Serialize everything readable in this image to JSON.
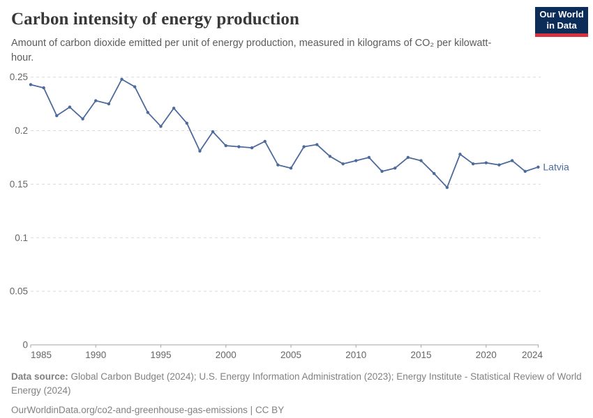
{
  "header": {
    "title": "Carbon intensity of energy production",
    "subtitle": "Amount of carbon dioxide emitted per unit of energy production, measured in kilograms of CO₂ per kilowatt-hour.",
    "logo": {
      "line1": "Our World",
      "line2": "in Data"
    }
  },
  "chart_data": {
    "type": "line",
    "title": "Carbon intensity of energy production",
    "xlabel": "",
    "ylabel": "kilograms of CO₂ per kilowatt-hour",
    "xlim": [
      1985,
      2024
    ],
    "ylim": [
      0,
      0.25
    ],
    "grid": "horizontal-dashed",
    "legend_position": "end-of-line-label",
    "y_ticks": [
      0,
      0.05,
      0.1,
      0.15,
      0.2,
      0.25
    ],
    "y_tick_labels": [
      "0",
      "0.05",
      "0.1",
      "0.15",
      "0.2",
      "0.25"
    ],
    "x_ticks": [
      1985,
      1990,
      1995,
      2000,
      2005,
      2010,
      2015,
      2020,
      2024
    ],
    "x_tick_labels": [
      "1985",
      "1990",
      "1995",
      "2000",
      "2005",
      "2010",
      "2015",
      "2020",
      "2024"
    ],
    "series": [
      {
        "name": "Latvia",
        "color": "#4c6a9c",
        "x": [
          1985,
          1986,
          1987,
          1988,
          1989,
          1990,
          1991,
          1992,
          1993,
          1994,
          1995,
          1996,
          1997,
          1998,
          1999,
          2000,
          2001,
          2002,
          2003,
          2004,
          2005,
          2006,
          2007,
          2008,
          2009,
          2010,
          2011,
          2012,
          2013,
          2014,
          2015,
          2016,
          2017,
          2018,
          2019,
          2020,
          2021,
          2022,
          2023,
          2024
        ],
        "values": [
          0.243,
          0.24,
          0.214,
          0.222,
          0.211,
          0.228,
          0.225,
          0.248,
          0.241,
          0.217,
          0.204,
          0.221,
          0.207,
          0.181,
          0.199,
          0.186,
          0.185,
          0.184,
          0.19,
          0.168,
          0.165,
          0.185,
          0.187,
          0.176,
          0.169,
          0.172,
          0.175,
          0.162,
          0.165,
          0.175,
          0.172,
          0.16,
          0.147,
          0.178,
          0.169,
          0.17,
          0.168,
          0.172,
          0.162,
          0.166
        ]
      }
    ]
  },
  "footer": {
    "source_label": "Data source:",
    "source_text": " Global Carbon Budget (2024); U.S. Energy Information Administration (2023); Energy Institute - Statistical Review of World Energy (2024)",
    "link_text": "OurWorldinData.org/co2-and-greenhouse-gas-emissions",
    "separator": " | ",
    "license": "CC BY"
  },
  "colors": {
    "line": "#4c6a9c",
    "title": "#383838",
    "subtitle": "#5b5b5b",
    "axis_text": "#666666",
    "grid": "#dadada",
    "logo_background": "#0d2d59",
    "logo_red_bar": "#d7333f"
  }
}
